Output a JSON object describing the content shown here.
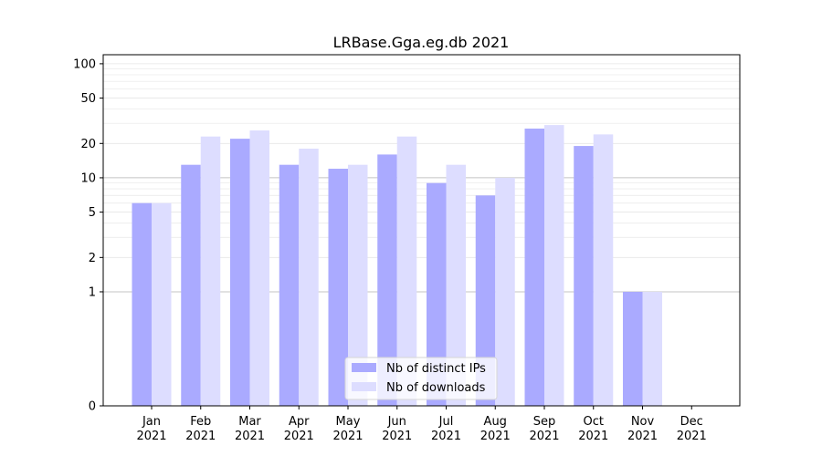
{
  "chart_data": {
    "type": "bar",
    "title": "LRBase.Gga.eg.db 2021",
    "xlabel": "",
    "ylabel": "",
    "y_scale": "symlog",
    "y_tick_labels": [
      "0",
      "1",
      "2",
      "5",
      "10",
      "20",
      "50",
      "100"
    ],
    "y_tick_values": [
      0,
      1,
      2,
      5,
      10,
      20,
      50,
      100
    ],
    "ylim": [
      0,
      120
    ],
    "grid": "horizontal",
    "legend_position": "bottom-center",
    "categories": [
      [
        "Jan",
        "2021"
      ],
      [
        "Feb",
        "2021"
      ],
      [
        "Mar",
        "2021"
      ],
      [
        "Apr",
        "2021"
      ],
      [
        "May",
        "2021"
      ],
      [
        "Jun",
        "2021"
      ],
      [
        "Jul",
        "2021"
      ],
      [
        "Aug",
        "2021"
      ],
      [
        "Sep",
        "2021"
      ],
      [
        "Oct",
        "2021"
      ],
      [
        "Nov",
        "2021"
      ],
      [
        "Dec",
        "2021"
      ]
    ],
    "series": [
      {
        "name": "Nb of distinct IPs",
        "color": "#aaaaff",
        "values": [
          6,
          13,
          22,
          13,
          12,
          16,
          9,
          7,
          27,
          19,
          1,
          0
        ]
      },
      {
        "name": "Nb of downloads",
        "color": "#ddddff",
        "values": [
          6,
          23,
          26,
          18,
          13,
          23,
          13,
          10,
          29,
          24,
          1,
          0
        ]
      }
    ]
  }
}
